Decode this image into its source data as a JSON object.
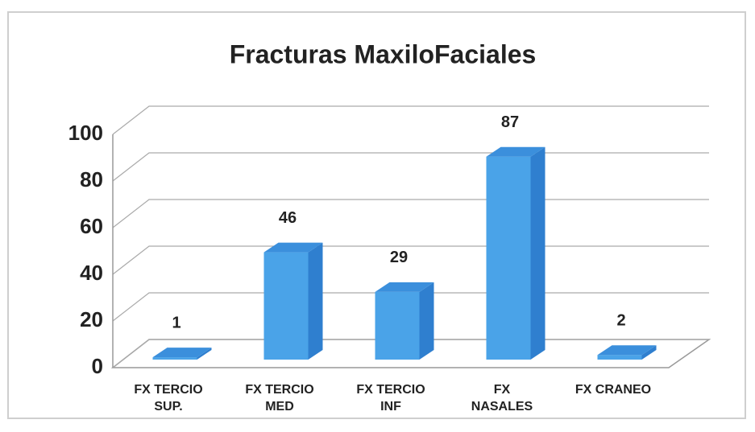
{
  "chart_data": {
    "type": "bar3d",
    "title": "Fracturas MaxiloFaciales",
    "categories": [
      [
        "FX TERCIO",
        "SUP."
      ],
      [
        "FX TERCIO",
        "MED"
      ],
      [
        "FX TERCIO",
        "INF"
      ],
      [
        "FX",
        "NASALES"
      ],
      [
        "FX CRANEO"
      ]
    ],
    "values": [
      1,
      46,
      29,
      87,
      2
    ],
    "color": "#4aa3e8",
    "ylim": [
      0,
      100
    ],
    "yticks": [
      0,
      20,
      40,
      60,
      80,
      100
    ],
    "grid": true
  }
}
